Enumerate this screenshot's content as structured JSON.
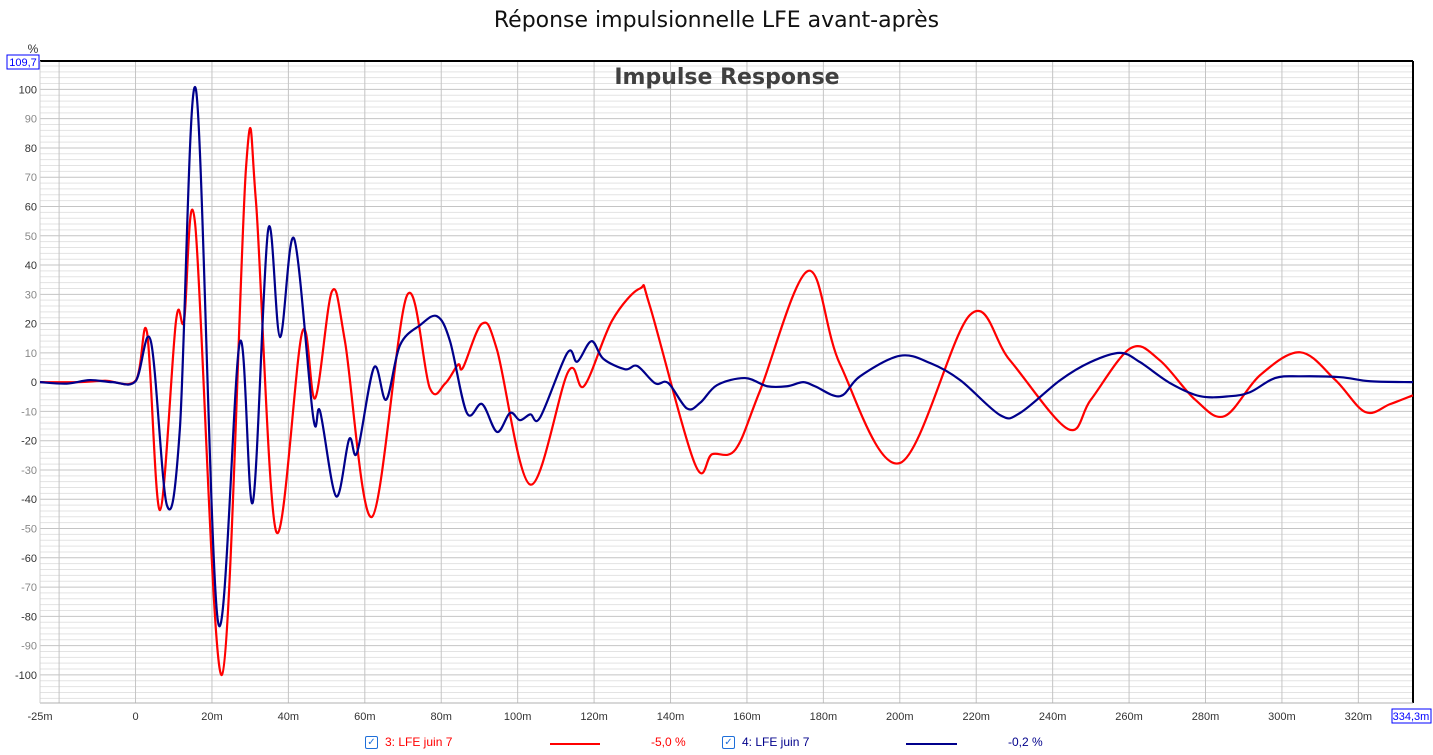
{
  "title": "Réponse impulsionnelle LFE avant-après",
  "chart_data": {
    "type": "line",
    "title": "Impulse Response",
    "ylabel": "%",
    "xlabel": "",
    "xlim": [
      -25,
      334.3
    ],
    "ylim": [
      -109.6,
      109.7
    ],
    "x_unit": "ms",
    "ylim_top_label": "109,7",
    "xlim_right_label": "334,3m",
    "grid": true,
    "x_ticks": [
      -25,
      0,
      20,
      40,
      60,
      80,
      100,
      120,
      140,
      160,
      180,
      200,
      220,
      240,
      260,
      280,
      300,
      320
    ],
    "x_tick_labels": [
      "-25m",
      "0",
      "20m",
      "40m",
      "60m",
      "80m",
      "100m",
      "120m",
      "140m",
      "160m",
      "180m",
      "200m",
      "220m",
      "240m",
      "260m",
      "280m",
      "300m",
      "320m"
    ],
    "y_ticks": [
      100,
      90,
      80,
      70,
      60,
      50,
      40,
      30,
      20,
      10,
      0,
      -10,
      -20,
      -30,
      -40,
      -50,
      -60,
      -70,
      -80,
      -90,
      -100
    ],
    "y_tick_labels": [
      "100",
      "90",
      "80",
      "70",
      "60",
      "50",
      "40",
      "30",
      "20",
      "10",
      "0",
      "-10",
      "-20",
      "-30",
      "-40",
      "-50",
      "-60",
      "-70",
      "-80",
      "-90",
      "-100"
    ],
    "legend_placement": "bottom",
    "series": [
      {
        "name": "3: LFE juin 7",
        "value_label": "-5,0 %",
        "color": "#ff0000",
        "checked": true,
        "points": [
          [
            -25,
            0
          ],
          [
            -15,
            0
          ],
          [
            -8,
            0.5
          ],
          [
            0,
            0.5
          ],
          [
            3,
            17
          ],
          [
            6.4,
            -43.7
          ],
          [
            10.6,
            21
          ],
          [
            12.7,
            21
          ],
          [
            15.6,
            54
          ],
          [
            22.6,
            -100
          ],
          [
            28.9,
            73
          ],
          [
            31.5,
            62
          ],
          [
            36.8,
            -51
          ],
          [
            43.6,
            17
          ],
          [
            47,
            -5.5
          ],
          [
            51.4,
            31
          ],
          [
            54.8,
            14
          ],
          [
            61.9,
            -46
          ],
          [
            71,
            29.5
          ],
          [
            77,
            -2
          ],
          [
            81,
            -0.5
          ],
          [
            84.4,
            6
          ],
          [
            85.7,
            5
          ],
          [
            90.7,
            20
          ],
          [
            94.6,
            11
          ],
          [
            103.3,
            -35
          ],
          [
            113.2,
            3.5
          ],
          [
            117.4,
            -1.3
          ],
          [
            124.7,
            21
          ],
          [
            132,
            32
          ],
          [
            134.6,
            26
          ],
          [
            146.4,
            -28
          ],
          [
            150.9,
            -24.6
          ],
          [
            157,
            -23
          ],
          [
            163.4,
            -3
          ],
          [
            176,
            38
          ],
          [
            184.4,
            6
          ],
          [
            200.1,
            -27.6
          ],
          [
            218.4,
            23
          ],
          [
            228.8,
            7.5
          ],
          [
            244,
            -16
          ],
          [
            250,
            -6
          ],
          [
            260.4,
            11.6
          ],
          [
            268,
            7.5
          ],
          [
            277.3,
            -6
          ],
          [
            285,
            -11.6
          ],
          [
            294.3,
            2.4
          ],
          [
            304.8,
            10.2
          ],
          [
            314,
            0.7
          ],
          [
            321.8,
            -10.2
          ],
          [
            328.3,
            -7.5
          ],
          [
            334.3,
            -4.5
          ]
        ]
      },
      {
        "name": "4: LFE juin 7",
        "value_label": "-0,2 %",
        "color": "#00008b",
        "checked": true,
        "points": [
          [
            -25,
            0
          ],
          [
            -18,
            -0.5
          ],
          [
            -12,
            0.7
          ],
          [
            -6,
            0
          ],
          [
            0,
            0.3
          ],
          [
            4,
            14
          ],
          [
            8.2,
            -42
          ],
          [
            11.6,
            -16
          ],
          [
            15.8,
            100
          ],
          [
            21.6,
            -82
          ],
          [
            27.3,
            13.7
          ],
          [
            30.7,
            -41
          ],
          [
            34.7,
            52
          ],
          [
            37.8,
            15.4
          ],
          [
            41.5,
            49
          ],
          [
            46.5,
            -12
          ],
          [
            48.3,
            -10
          ],
          [
            52.5,
            -39
          ],
          [
            55.9,
            -19.5
          ],
          [
            58,
            -24
          ],
          [
            62.4,
            5
          ],
          [
            65.6,
            -6
          ],
          [
            69.2,
            12.6
          ],
          [
            74.5,
            19.5
          ],
          [
            78.9,
            22.5
          ],
          [
            82.3,
            14
          ],
          [
            86.7,
            -10.5
          ],
          [
            90.7,
            -7.5
          ],
          [
            94.6,
            -17
          ],
          [
            98,
            -10.5
          ],
          [
            100.6,
            -13
          ],
          [
            103.3,
            -11
          ],
          [
            105.9,
            -12
          ],
          [
            113,
            10
          ],
          [
            115.6,
            7
          ],
          [
            119.3,
            14
          ],
          [
            122.4,
            8
          ],
          [
            128.1,
            4.4
          ],
          [
            131.3,
            5.5
          ],
          [
            136,
            -0.4
          ],
          [
            139.4,
            -0.3
          ],
          [
            144.3,
            -9
          ],
          [
            147.8,
            -7
          ],
          [
            152.2,
            -1
          ],
          [
            159.5,
            1.4
          ],
          [
            165.3,
            -1.4
          ],
          [
            170.5,
            -1.4
          ],
          [
            174.7,
            0
          ],
          [
            177.8,
            -1.4
          ],
          [
            184.4,
            -4.8
          ],
          [
            189.6,
            2
          ],
          [
            200,
            9
          ],
          [
            208,
            6.5
          ],
          [
            215.8,
            0.7
          ],
          [
            226.3,
            -11.3
          ],
          [
            231.5,
            -10.5
          ],
          [
            242,
            0.7
          ],
          [
            249.8,
            6.8
          ],
          [
            257.6,
            10
          ],
          [
            262.9,
            6.8
          ],
          [
            270.7,
            -0.3
          ],
          [
            278.6,
            -4.8
          ],
          [
            286.4,
            -4.8
          ],
          [
            291.7,
            -3.4
          ],
          [
            298.2,
            1.4
          ],
          [
            304.8,
            2
          ],
          [
            315.3,
            1.7
          ],
          [
            323.1,
            0.3
          ],
          [
            334.3,
            0
          ]
        ]
      }
    ]
  }
}
